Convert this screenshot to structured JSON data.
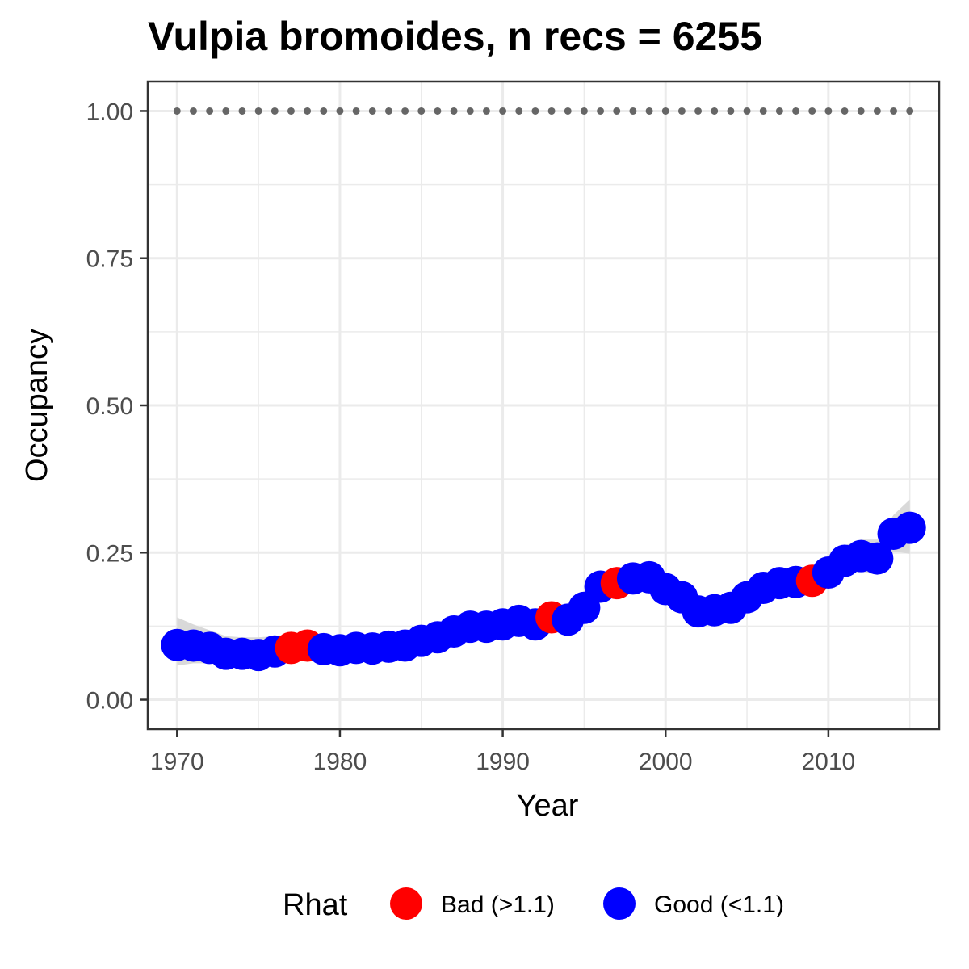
{
  "chart_data": {
    "type": "scatter",
    "title": "Vulpia bromoides, n recs = 6255",
    "xlabel": "Year",
    "ylabel": "Occupancy",
    "xlim": [
      1968.2,
      2016.8
    ],
    "ylim": [
      -0.05,
      1.05
    ],
    "x_ticks": [
      1970,
      1980,
      1990,
      2000,
      2010
    ],
    "x_tick_labels": [
      "1970",
      "1980",
      "1990",
      "2000",
      "2010"
    ],
    "y_ticks": [
      0,
      0.25,
      0.5,
      0.75,
      1
    ],
    "y_tick_labels": [
      "0.00",
      "0.25",
      "0.50",
      "0.75",
      "1.00"
    ],
    "grid": true,
    "legend": {
      "title": "Rhat",
      "placement": "bottom",
      "entries": [
        {
          "label": "Bad (>1.1)",
          "color": "#ff0000"
        },
        {
          "label": "Good (<1.1)",
          "color": "#0000ff"
        }
      ]
    },
    "colors": {
      "bad": "#ff0000",
      "good": "#0000ff",
      "ribbon": "#d9d9d9",
      "reference": "#666666",
      "grid": "#ebebeb",
      "panel_border": "#333333"
    },
    "reference_line": {
      "y": 1.0,
      "style": "dotted"
    },
    "series": [
      {
        "name": "Occupancy",
        "points": [
          {
            "x": 1970,
            "y": 0.093,
            "lower": 0.058,
            "upper": 0.14,
            "rhat": "Good"
          },
          {
            "x": 1971,
            "y": 0.092,
            "lower": 0.062,
            "upper": 0.128,
            "rhat": "Good"
          },
          {
            "x": 1972,
            "y": 0.088,
            "lower": 0.062,
            "upper": 0.118,
            "rhat": "Good"
          },
          {
            "x": 1973,
            "y": 0.078,
            "lower": 0.06,
            "upper": 0.108,
            "rhat": "Good"
          },
          {
            "x": 1974,
            "y": 0.078,
            "lower": 0.06,
            "upper": 0.106,
            "rhat": "Good"
          },
          {
            "x": 1975,
            "y": 0.076,
            "lower": 0.06,
            "upper": 0.106,
            "rhat": "Good"
          },
          {
            "x": 1976,
            "y": 0.082,
            "lower": 0.062,
            "upper": 0.108,
            "rhat": "Good"
          },
          {
            "x": 1977,
            "y": 0.088,
            "lower": 0.066,
            "upper": 0.112,
            "rhat": "Bad"
          },
          {
            "x": 1978,
            "y": 0.092,
            "lower": 0.07,
            "upper": 0.116,
            "rhat": "Bad"
          },
          {
            "x": 1979,
            "y": 0.086,
            "lower": 0.068,
            "upper": 0.11,
            "rhat": "Good"
          },
          {
            "x": 1980,
            "y": 0.084,
            "lower": 0.068,
            "upper": 0.106,
            "rhat": "Good"
          },
          {
            "x": 1981,
            "y": 0.088,
            "lower": 0.07,
            "upper": 0.108,
            "rhat": "Good"
          },
          {
            "x": 1982,
            "y": 0.087,
            "lower": 0.07,
            "upper": 0.106,
            "rhat": "Good"
          },
          {
            "x": 1983,
            "y": 0.09,
            "lower": 0.072,
            "upper": 0.11,
            "rhat": "Good"
          },
          {
            "x": 1984,
            "y": 0.092,
            "lower": 0.074,
            "upper": 0.112,
            "rhat": "Good"
          },
          {
            "x": 1985,
            "y": 0.1,
            "lower": 0.082,
            "upper": 0.12,
            "rhat": "Good"
          },
          {
            "x": 1986,
            "y": 0.106,
            "lower": 0.088,
            "upper": 0.126,
            "rhat": "Good"
          },
          {
            "x": 1987,
            "y": 0.116,
            "lower": 0.098,
            "upper": 0.136,
            "rhat": "Good"
          },
          {
            "x": 1988,
            "y": 0.124,
            "lower": 0.104,
            "upper": 0.144,
            "rhat": "Good"
          },
          {
            "x": 1989,
            "y": 0.124,
            "lower": 0.106,
            "upper": 0.146,
            "rhat": "Good"
          },
          {
            "x": 1990,
            "y": 0.128,
            "lower": 0.11,
            "upper": 0.15,
            "rhat": "Good"
          },
          {
            "x": 1991,
            "y": 0.134,
            "lower": 0.114,
            "upper": 0.154,
            "rhat": "Good"
          },
          {
            "x": 1992,
            "y": 0.128,
            "lower": 0.11,
            "upper": 0.152,
            "rhat": "Good"
          },
          {
            "x": 1993,
            "y": 0.14,
            "lower": 0.12,
            "upper": 0.162,
            "rhat": "Bad"
          },
          {
            "x": 1994,
            "y": 0.136,
            "lower": 0.118,
            "upper": 0.158,
            "rhat": "Good"
          },
          {
            "x": 1995,
            "y": 0.156,
            "lower": 0.136,
            "upper": 0.178,
            "rhat": "Good"
          },
          {
            "x": 1996,
            "y": 0.192,
            "lower": 0.17,
            "upper": 0.216,
            "rhat": "Good"
          },
          {
            "x": 1997,
            "y": 0.198,
            "lower": 0.176,
            "upper": 0.222,
            "rhat": "Bad"
          },
          {
            "x": 1998,
            "y": 0.206,
            "lower": 0.184,
            "upper": 0.23,
            "rhat": "Good"
          },
          {
            "x": 1999,
            "y": 0.208,
            "lower": 0.186,
            "upper": 0.232,
            "rhat": "Good"
          },
          {
            "x": 2000,
            "y": 0.188,
            "lower": 0.166,
            "upper": 0.212,
            "rhat": "Good"
          },
          {
            "x": 2001,
            "y": 0.174,
            "lower": 0.152,
            "upper": 0.198,
            "rhat": "Good"
          },
          {
            "x": 2002,
            "y": 0.15,
            "lower": 0.13,
            "upper": 0.172,
            "rhat": "Good"
          },
          {
            "x": 2003,
            "y": 0.152,
            "lower": 0.132,
            "upper": 0.174,
            "rhat": "Good"
          },
          {
            "x": 2004,
            "y": 0.156,
            "lower": 0.136,
            "upper": 0.178,
            "rhat": "Good"
          },
          {
            "x": 2005,
            "y": 0.174,
            "lower": 0.154,
            "upper": 0.196,
            "rhat": "Good"
          },
          {
            "x": 2006,
            "y": 0.19,
            "lower": 0.168,
            "upper": 0.212,
            "rhat": "Good"
          },
          {
            "x": 2007,
            "y": 0.198,
            "lower": 0.176,
            "upper": 0.222,
            "rhat": "Good"
          },
          {
            "x": 2008,
            "y": 0.2,
            "lower": 0.178,
            "upper": 0.224,
            "rhat": "Good"
          },
          {
            "x": 2009,
            "y": 0.202,
            "lower": 0.18,
            "upper": 0.226,
            "rhat": "Bad"
          },
          {
            "x": 2010,
            "y": 0.216,
            "lower": 0.194,
            "upper": 0.24,
            "rhat": "Good"
          },
          {
            "x": 2011,
            "y": 0.236,
            "lower": 0.212,
            "upper": 0.262,
            "rhat": "Good"
          },
          {
            "x": 2012,
            "y": 0.244,
            "lower": 0.218,
            "upper": 0.272,
            "rhat": "Good"
          },
          {
            "x": 2013,
            "y": 0.24,
            "lower": 0.212,
            "upper": 0.272,
            "rhat": "Good"
          },
          {
            "x": 2014,
            "y": 0.282,
            "lower": 0.252,
            "upper": 0.314,
            "rhat": "Good"
          },
          {
            "x": 2015,
            "y": 0.292,
            "lower": 0.248,
            "upper": 0.34,
            "rhat": "Good"
          }
        ]
      }
    ]
  }
}
